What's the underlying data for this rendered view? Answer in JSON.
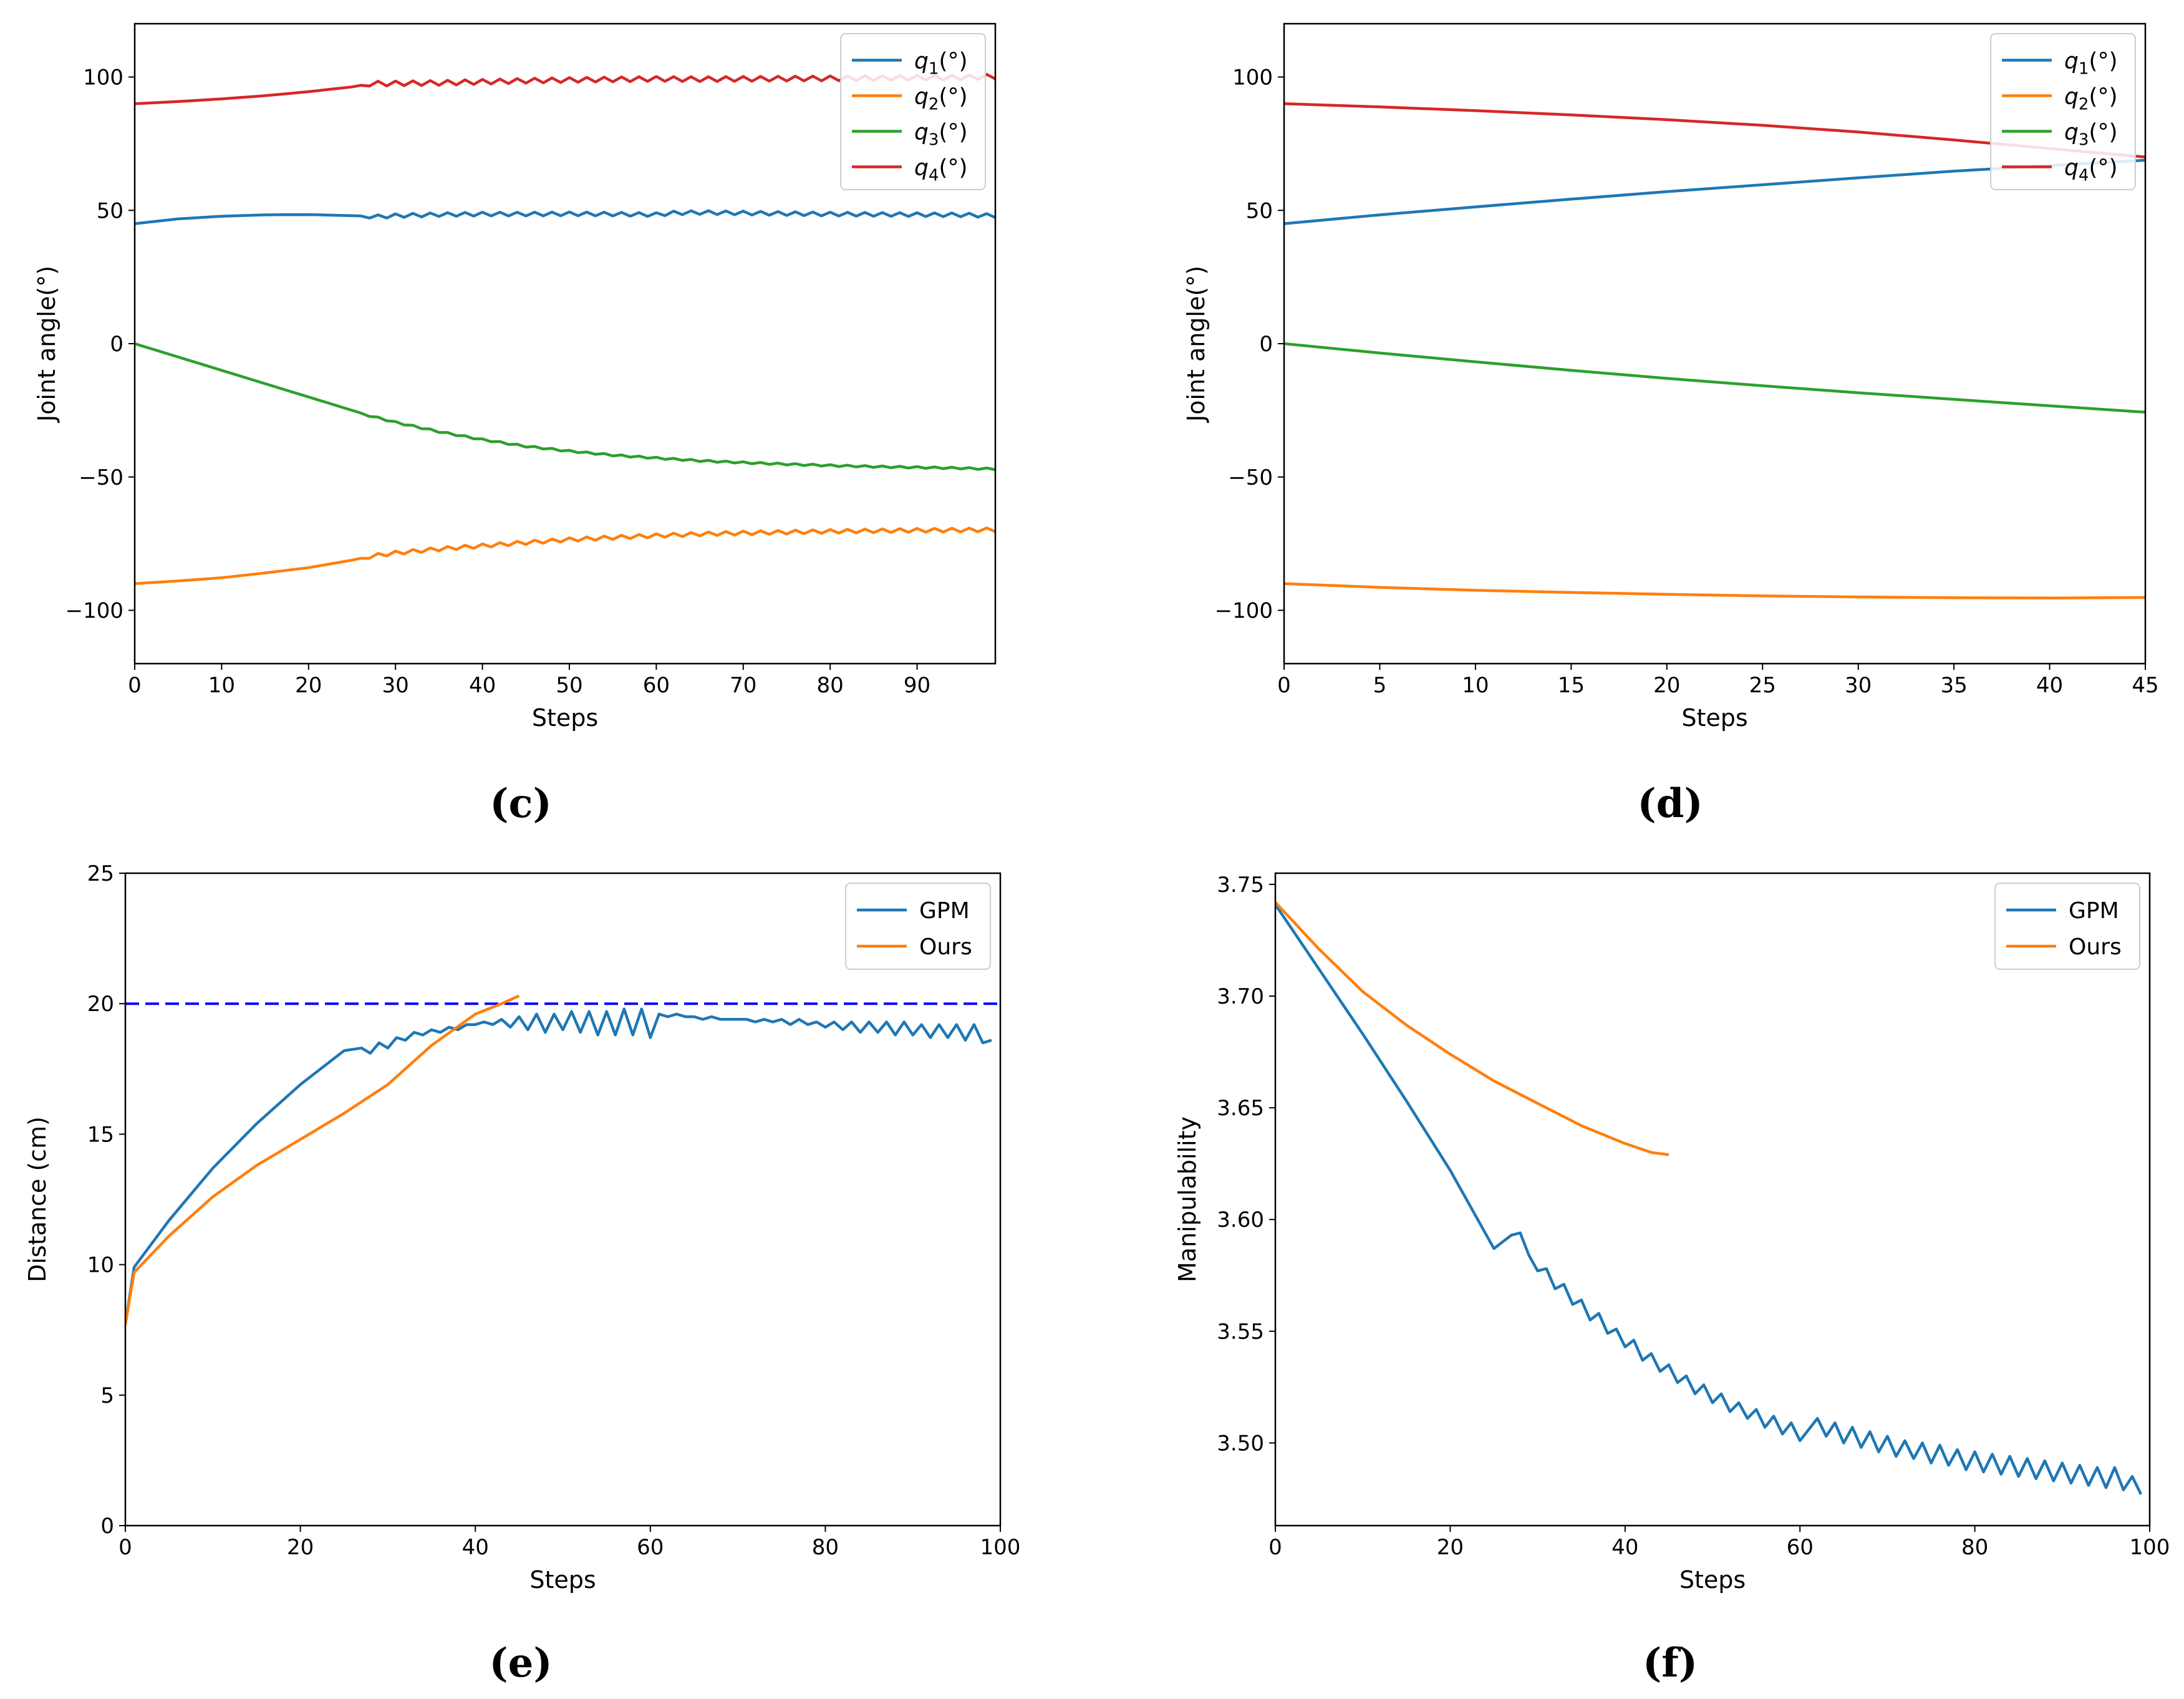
{
  "colors": {
    "c0": "#1f77b4",
    "c1": "#ff7f0e",
    "c2": "#2ca02c",
    "c3": "#d62728",
    "ref": "#0000ff"
  },
  "chart_data": [
    {
      "id": "c",
      "panel_label": "(c)",
      "type": "line",
      "xlabel": "Steps",
      "ylabel": "Joint angle(°)",
      "xlim": [
        0,
        99
      ],
      "ylim": [
        -120,
        120
      ],
      "xticks": [
        0,
        10,
        20,
        30,
        40,
        50,
        60,
        70,
        80,
        90
      ],
      "yticks": [
        -100,
        -50,
        0,
        50,
        100
      ],
      "ytick_labels": [
        "−100",
        "−50",
        "0",
        "50",
        "100"
      ],
      "legend_loc": "upper right",
      "n": 100,
      "series": [
        {
          "name": "q1",
          "label_base": "q",
          "label_sub": "1",
          "label_suffix": "(°)",
          "color": "#1f77b4",
          "x": [
            0,
            5,
            10,
            15,
            20,
            25,
            27,
            28,
            30,
            35,
            40,
            45,
            50,
            55,
            60,
            62,
            65,
            70,
            75,
            80,
            85,
            90,
            95,
            99
          ],
          "y": [
            45,
            46.8,
            47.8,
            48.3,
            48.4,
            48,
            47.8,
            47.6,
            48,
            48.4,
            48.6,
            48.6,
            48.7,
            48.6,
            48.4,
            49,
            49.2,
            49,
            48.8,
            48.6,
            48.5,
            48.4,
            48.3,
            48
          ],
          "wiggle_start": 27,
          "wiggle_amp": 0.7
        },
        {
          "name": "q2",
          "label_base": "q",
          "label_sub": "2",
          "label_suffix": "(°)",
          "color": "#ff7f0e",
          "x": [
            0,
            5,
            10,
            15,
            20,
            25,
            27,
            30,
            35,
            40,
            45,
            50,
            55,
            60,
            65,
            70,
            75,
            80,
            85,
            90,
            95,
            99
          ],
          "y": [
            -90,
            -89,
            -87.8,
            -86,
            -84,
            -81.2,
            -79.8,
            -78.5,
            -77,
            -75.8,
            -74.6,
            -73.5,
            -72.7,
            -72,
            -71.4,
            -71,
            -70.7,
            -70.4,
            -70.2,
            -70,
            -69.9,
            -69.8
          ],
          "wiggle_start": 27,
          "wiggle_amp": 0.7
        },
        {
          "name": "q3",
          "label_base": "q",
          "label_sub": "3",
          "label_suffix": "(°)",
          "color": "#2ca02c",
          "x": [
            0,
            5,
            10,
            15,
            20,
            25,
            27,
            30,
            35,
            40,
            45,
            50,
            55,
            60,
            65,
            70,
            75,
            80,
            85,
            90,
            95,
            99
          ],
          "y": [
            0,
            -5,
            -10,
            -15,
            -20,
            -25,
            -27,
            -29.5,
            -33,
            -36,
            -38.5,
            -40.3,
            -41.8,
            -42.9,
            -43.9,
            -44.6,
            -45.2,
            -45.7,
            -46.1,
            -46.4,
            -46.7,
            -47
          ],
          "wiggle_start": 27,
          "wiggle_amp": 0.3
        },
        {
          "name": "q4",
          "label_base": "q",
          "label_sub": "4",
          "label_suffix": "(°)",
          "color": "#d62728",
          "x": [
            0,
            5,
            10,
            15,
            20,
            25,
            27,
            30,
            35,
            40,
            45,
            50,
            55,
            60,
            65,
            70,
            75,
            80,
            85,
            90,
            95,
            99
          ],
          "y": [
            90,
            90.8,
            91.8,
            93,
            94.5,
            96.3,
            97.5,
            97.6,
            97.8,
            98.2,
            98.6,
            98.9,
            99.1,
            99.3,
            99.2,
            99.3,
            99.4,
            99.5,
            99.6,
            99.7,
            99.8,
            100.2
          ],
          "wiggle_start": 27,
          "wiggle_amp": 0.9
        }
      ]
    },
    {
      "id": "d",
      "panel_label": "(d)",
      "type": "line",
      "xlabel": "Steps",
      "ylabel": "Joint angle(°)",
      "xlim": [
        0,
        45
      ],
      "ylim": [
        -120,
        120
      ],
      "xticks": [
        0,
        5,
        10,
        15,
        20,
        25,
        30,
        35,
        40,
        45
      ],
      "yticks": [
        -100,
        -50,
        0,
        50,
        100
      ],
      "ytick_labels": [
        "−100",
        "−50",
        "0",
        "50",
        "100"
      ],
      "legend_loc": "upper right",
      "n": 46,
      "series": [
        {
          "name": "q1",
          "label_base": "q",
          "label_sub": "1",
          "label_suffix": "(°)",
          "color": "#1f77b4",
          "x": [
            0,
            5,
            10,
            15,
            20,
            25,
            30,
            35,
            40,
            45
          ],
          "y": [
            45,
            48.3,
            51.3,
            54.2,
            57,
            59.6,
            62.2,
            64.7,
            66.8,
            68.8
          ]
        },
        {
          "name": "q2",
          "label_base": "q",
          "label_sub": "2",
          "label_suffix": "(°)",
          "color": "#ff7f0e",
          "x": [
            0,
            5,
            10,
            15,
            20,
            25,
            30,
            35,
            40,
            45
          ],
          "y": [
            -90,
            -91.4,
            -92.5,
            -93.3,
            -94,
            -94.6,
            -95,
            -95.3,
            -95.4,
            -95.2
          ]
        },
        {
          "name": "q3",
          "label_base": "q",
          "label_sub": "3",
          "label_suffix": "(°)",
          "color": "#2ca02c",
          "x": [
            0,
            5,
            10,
            15,
            20,
            25,
            30,
            35,
            40,
            45
          ],
          "y": [
            0,
            -3.5,
            -6.8,
            -10,
            -13,
            -15.8,
            -18.4,
            -20.9,
            -23.3,
            -25.7
          ]
        },
        {
          "name": "q4",
          "label_base": "q",
          "label_sub": "4",
          "label_suffix": "(°)",
          "color": "#d62728",
          "x": [
            0,
            5,
            10,
            15,
            20,
            25,
            30,
            35,
            40,
            45
          ],
          "y": [
            90,
            88.8,
            87.4,
            85.8,
            84,
            81.9,
            79.4,
            76.4,
            73.2,
            70
          ]
        }
      ]
    },
    {
      "id": "e",
      "panel_label": "(e)",
      "type": "line",
      "xlabel": "Steps",
      "ylabel": "Distance (cm)",
      "xlim": [
        0,
        100
      ],
      "ylim": [
        0,
        25
      ],
      "xticks": [
        0,
        20,
        40,
        60,
        80,
        100
      ],
      "yticks": [
        0,
        5,
        10,
        15,
        20,
        25
      ],
      "ytick_labels": [
        "0",
        "5",
        "10",
        "15",
        "20",
        "25"
      ],
      "legend_loc": "upper right",
      "hline": {
        "y": 20,
        "style": "dashed",
        "color": "#0000ff"
      },
      "series": [
        {
          "name": "GPM",
          "label": "GPM",
          "color": "#1f77b4",
          "x": [
            0,
            1,
            5,
            10,
            15,
            20,
            25,
            27,
            28,
            29,
            30,
            31,
            32,
            33,
            34,
            35,
            36,
            37,
            38,
            39,
            40,
            41,
            42,
            43,
            44,
            45,
            46,
            47,
            48,
            49,
            50,
            51,
            52,
            53,
            54,
            55,
            56,
            57,
            58,
            59,
            60,
            61,
            62,
            63,
            64,
            65,
            66,
            67,
            68,
            69,
            70,
            71,
            72,
            73,
            74,
            75,
            76,
            77,
            78,
            79,
            80,
            81,
            82,
            83,
            84,
            85,
            86,
            87,
            88,
            89,
            90,
            91,
            92,
            93,
            94,
            95,
            96,
            97,
            98,
            99
          ],
          "y": [
            7.7,
            9.9,
            11.7,
            13.7,
            15.4,
            16.9,
            18.2,
            18.3,
            18.1,
            18.5,
            18.3,
            18.7,
            18.6,
            18.9,
            18.8,
            19.0,
            18.9,
            19.1,
            19.0,
            19.2,
            19.2,
            19.3,
            19.2,
            19.4,
            19.1,
            19.5,
            19.0,
            19.6,
            18.9,
            19.6,
            19.0,
            19.7,
            18.9,
            19.7,
            18.8,
            19.7,
            18.8,
            19.8,
            18.8,
            19.8,
            18.7,
            19.6,
            19.5,
            19.6,
            19.5,
            19.5,
            19.4,
            19.5,
            19.4,
            19.4,
            19.4,
            19.4,
            19.3,
            19.4,
            19.3,
            19.4,
            19.2,
            19.4,
            19.2,
            19.3,
            19.1,
            19.3,
            19.0,
            19.3,
            18.9,
            19.3,
            18.9,
            19.3,
            18.8,
            19.3,
            18.8,
            19.2,
            18.7,
            19.2,
            18.7,
            19.2,
            18.6,
            19.2,
            18.5,
            18.6
          ]
        },
        {
          "name": "Ours",
          "label": "Ours",
          "color": "#ff7f0e",
          "x": [
            0,
            1,
            5,
            10,
            15,
            20,
            25,
            30,
            35,
            40,
            43,
            45
          ],
          "y": [
            7.7,
            9.7,
            11.1,
            12.6,
            13.8,
            14.8,
            15.8,
            16.9,
            18.4,
            19.6,
            20.0,
            20.3
          ]
        }
      ]
    },
    {
      "id": "f",
      "panel_label": "(f)",
      "type": "line",
      "xlabel": "Steps",
      "ylabel": "Manipulability",
      "xlim": [
        0,
        100
      ],
      "ylim": [
        3.463,
        3.755
      ],
      "xticks": [
        0,
        20,
        40,
        60,
        80,
        100
      ],
      "yticks": [
        3.5,
        3.55,
        3.6,
        3.65,
        3.7,
        3.75
      ],
      "ytick_labels": [
        "3.50",
        "3.55",
        "3.60",
        "3.65",
        "3.70",
        "3.75"
      ],
      "legend_loc": "upper right",
      "series": [
        {
          "name": "GPM",
          "label": "GPM",
          "color": "#1f77b4",
          "x": [
            0,
            5,
            10,
            15,
            20,
            25,
            27,
            28,
            29,
            30,
            31,
            32,
            33,
            34,
            35,
            36,
            37,
            38,
            39,
            40,
            41,
            42,
            43,
            44,
            45,
            46,
            47,
            48,
            49,
            50,
            51,
            52,
            53,
            54,
            55,
            56,
            57,
            58,
            59,
            60,
            61,
            62,
            63,
            64,
            65,
            66,
            67,
            68,
            69,
            70,
            71,
            72,
            73,
            74,
            75,
            76,
            77,
            78,
            79,
            80,
            81,
            82,
            83,
            84,
            85,
            86,
            87,
            88,
            89,
            90,
            91,
            92,
            93,
            94,
            95,
            96,
            97,
            98,
            99
          ],
          "y": [
            3.741,
            3.712,
            3.683,
            3.653,
            3.622,
            3.587,
            3.593,
            3.594,
            3.584,
            3.577,
            3.578,
            3.569,
            3.571,
            3.562,
            3.564,
            3.555,
            3.558,
            3.549,
            3.551,
            3.543,
            3.546,
            3.537,
            3.54,
            3.532,
            3.535,
            3.527,
            3.53,
            3.522,
            3.526,
            3.518,
            3.522,
            3.514,
            3.518,
            3.511,
            3.515,
            3.507,
            3.512,
            3.504,
            3.509,
            3.501,
            3.506,
            3.511,
            3.503,
            3.509,
            3.5,
            3.507,
            3.498,
            3.505,
            3.496,
            3.503,
            3.494,
            3.501,
            3.493,
            3.5,
            3.491,
            3.499,
            3.49,
            3.497,
            3.488,
            3.496,
            3.487,
            3.495,
            3.486,
            3.494,
            3.485,
            3.493,
            3.484,
            3.492,
            3.483,
            3.491,
            3.482,
            3.49,
            3.481,
            3.489,
            3.48,
            3.489,
            3.479,
            3.485,
            3.477
          ]
        },
        {
          "name": "Ours",
          "label": "Ours",
          "color": "#ff7f0e",
          "x": [
            0,
            5,
            10,
            15,
            20,
            25,
            30,
            35,
            40,
            43,
            45
          ],
          "y": [
            3.742,
            3.721,
            3.702,
            3.687,
            3.674,
            3.662,
            3.652,
            3.642,
            3.634,
            3.63,
            3.629
          ]
        }
      ]
    }
  ]
}
